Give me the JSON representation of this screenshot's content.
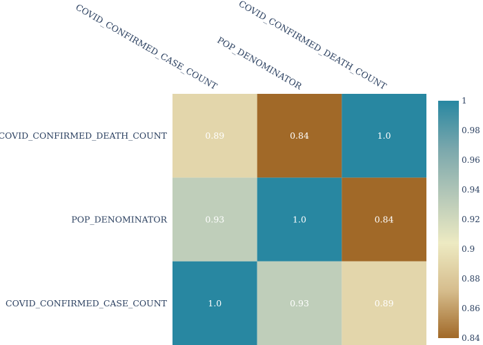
{
  "chart_data": {
    "type": "heatmap",
    "x": [
      "COVID_CONFIRMED_CASE_COUNT",
      "POP_DENOMINATOR",
      "COVID_CONFIRMED_DEATH_COUNT"
    ],
    "y": [
      "COVID_CONFIRMED_CASE_COUNT",
      "POP_DENOMINATOR",
      "COVID_CONFIRMED_DEATH_COUNT"
    ],
    "z": [
      [
        1.0,
        0.93,
        0.89
      ],
      [
        0.93,
        1.0,
        0.84
      ],
      [
        0.89,
        0.84,
        1.0
      ]
    ],
    "cell_labels": [
      [
        "1.0",
        "0.93",
        "0.89"
      ],
      [
        "0.93",
        "1.0",
        "0.84"
      ],
      [
        "0.89",
        "0.84",
        "1.0"
      ]
    ],
    "zlim": [
      0.84,
      1.0
    ],
    "colorscale": [
      "#a16928",
      "#d6bd8d",
      "#edeac2",
      "#b5c8b8",
      "#79a7ac",
      "#2887a1"
    ],
    "colorbar_ticks": [
      "0.84",
      "0.86",
      "0.88",
      "0.9",
      "0.92",
      "0.94",
      "0.96",
      "0.98",
      "1"
    ],
    "colorbar_tick_values": [
      0.84,
      0.86,
      0.88,
      0.9,
      0.92,
      0.94,
      0.96,
      0.98,
      1.0
    ],
    "x_axis_side": "top",
    "grid": false
  }
}
